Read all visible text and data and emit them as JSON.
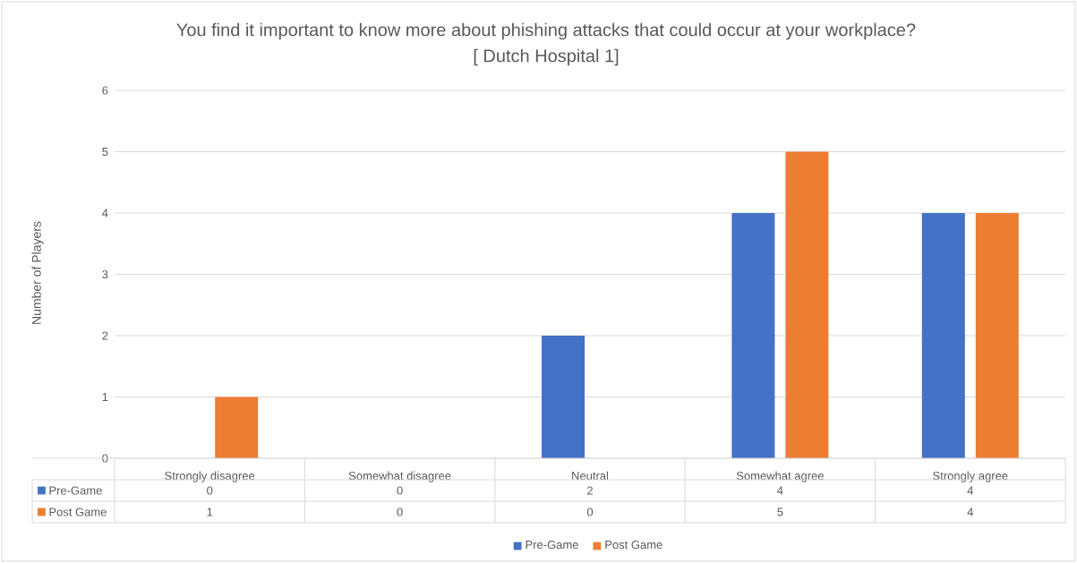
{
  "chart_data": {
    "type": "bar",
    "title": "You find it important to know more about phishing attacks that could occur at your workplace?",
    "subtitle": "[ Dutch Hospital 1]",
    "ylabel": "Number of Players",
    "categories": [
      "Strongly disagree",
      "Somewhat disagree",
      "Neutral",
      "Somewhat agree",
      "Strongly agree"
    ],
    "series": [
      {
        "name": "Pre-Game",
        "color": "#4472c4",
        "values": [
          0,
          0,
          2,
          4,
          4
        ]
      },
      {
        "name": "Post Game",
        "color": "#ed7d31",
        "values": [
          1,
          0,
          0,
          5,
          4
        ]
      }
    ],
    "ylim": [
      0,
      6
    ],
    "yticks": [
      0,
      1,
      2,
      3,
      4,
      5,
      6
    ],
    "grid": "y",
    "legend": "bottom",
    "data_labels": true
  }
}
